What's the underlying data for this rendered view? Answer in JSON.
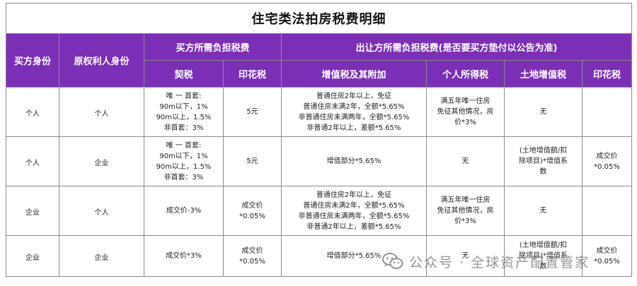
{
  "title": "住宅类法拍房税费明细",
  "headers": {
    "buyer_identity": "买方身份",
    "owner_identity": "原权利人身份",
    "buyer_taxes": "买方所需负担税费",
    "seller_taxes": "出让方所需负担税费(是否要买方垫付以公告为准)",
    "deed_tax": "契税",
    "stamp_tax_buyer": "印花税",
    "vat": "增值税及其附加",
    "income_tax": "个人所得税",
    "land_vat": "土地增值税",
    "stamp_tax_seller": "印花税"
  },
  "rows": [
    {
      "buyer": "个人",
      "owner": "个人",
      "deed": [
        "唯 一 首套:",
        "90m以下，1%",
        "90m以上，1.5%",
        "非首套：3%"
      ],
      "stamp_buyer": [
        "5元"
      ],
      "vat": [
        "普通住房2年以上，免征",
        "普通住房未满2年，全额*5.65%",
        "非普通住房未满两年，全额*5.65%",
        "非普通2年以上，差额*5.65%"
      ],
      "income": [
        "满五年唯一住房",
        "免征其他情况，房",
        "价*3%"
      ],
      "land": [
        "无"
      ],
      "stamp_seller": []
    },
    {
      "buyer": "个人",
      "owner": "企业",
      "deed": [
        "唯 一 首套:",
        "90m以下，1%",
        "90m以上，1.5%",
        "非首套：3%"
      ],
      "stamp_buyer": [
        "5元"
      ],
      "vat": [
        "增值部分*5.65%"
      ],
      "income": [
        "无"
      ],
      "land": [
        "(土地增值额/扣",
        "除项目)*增值系",
        "数"
      ],
      "stamp_seller": [
        "成交价",
        "*0.05%"
      ]
    },
    {
      "buyer": "企业",
      "owner": "个人",
      "deed": [
        "成交价-3%"
      ],
      "stamp_buyer": [
        "成交价",
        "*0.05%"
      ],
      "vat": [
        "普通住房2年以上，免征",
        "普通住房未满2年，全额*5.65%",
        "非普通住房未满两年，全额*5.65%",
        "非普通2年以上，差额*5.65%"
      ],
      "income": [
        "满五年唯一住房",
        "免征其他情况，房",
        "价*3%"
      ],
      "land": [
        "无"
      ],
      "stamp_seller": []
    },
    {
      "buyer": "企业",
      "owner": "企业",
      "deed": [
        "成交价*3%"
      ],
      "stamp_buyer": [
        "成交价",
        "*0.05%"
      ],
      "vat": [
        "增值部分*5.65%"
      ],
      "income": [
        "无"
      ],
      "land": [
        "(土地增值额/扣",
        "除项目)*增值系",
        "数"
      ],
      "stamp_seller": [
        "成交价",
        "*0.05%"
      ]
    }
  ],
  "watermark": {
    "icon": "wechat-icon",
    "text": "公众号 · 全球资产配置管家",
    "color": "#6c6c6c"
  },
  "colors": {
    "header_bg": "#7b2fb6",
    "header_text": "#ffffff",
    "border": "#8a8a8a"
  }
}
